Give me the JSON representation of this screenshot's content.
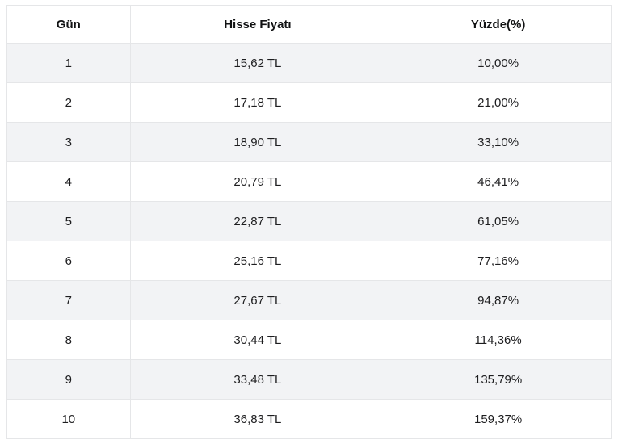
{
  "chart_data": {
    "type": "table",
    "title": "",
    "columns": [
      "Gün",
      "Hisse Fiyatı",
      "Yüzde(%)"
    ],
    "rows": [
      [
        "1",
        "15,62 TL",
        "10,00%"
      ],
      [
        "2",
        "17,18 TL",
        "21,00%"
      ],
      [
        "3",
        "18,90 TL",
        "33,10%"
      ],
      [
        "4",
        "20,79 TL",
        "46,41%"
      ],
      [
        "5",
        "22,87 TL",
        "61,05%"
      ],
      [
        "6",
        "25,16 TL",
        "77,16%"
      ],
      [
        "7",
        "27,67 TL",
        "94,87%"
      ],
      [
        "8",
        "30,44 TL",
        "114,36%"
      ],
      [
        "9",
        "33,48 TL",
        "135,79%"
      ],
      [
        "10",
        "36,83 TL",
        "159,37%"
      ]
    ],
    "layout": {
      "stripe_style": "odd-rows-shaded",
      "text_align": "center",
      "grid": true
    },
    "colors": {
      "stripe": "#f2f3f5",
      "row_default": "#ffffff",
      "border": "#e5e6e8",
      "text": "#1d1d1f",
      "page_background": "#ffffff"
    }
  }
}
